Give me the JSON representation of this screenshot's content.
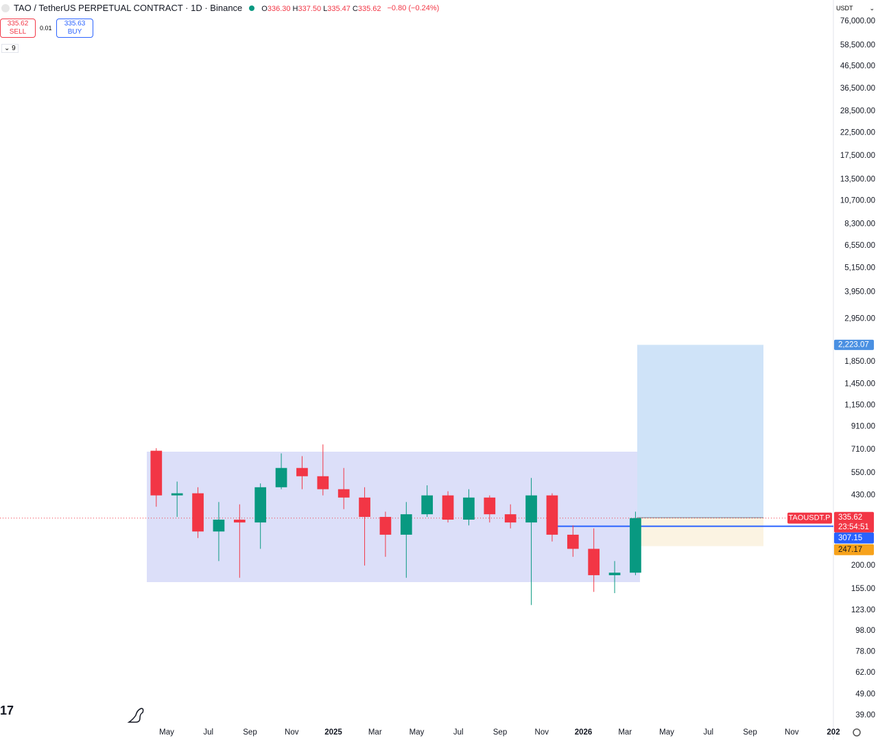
{
  "header": {
    "symbol": "TAO / TetherUS PERPETUAL CONTRACT · 1D · Binance",
    "ohlc": [
      {
        "key": "O",
        "value": "336.30"
      },
      {
        "key": "H",
        "value": "337.50"
      },
      {
        "key": "L",
        "value": "335.47"
      },
      {
        "key": "C",
        "value": "335.62"
      }
    ],
    "change": "−0.80 (−0.24%)"
  },
  "trade": {
    "sell": {
      "price": "335.62",
      "label": "SELL"
    },
    "spread": "0.01",
    "buy": {
      "price": "335.63",
      "label": "BUY"
    }
  },
  "indicators": "9",
  "currency": "USDT",
  "chart_data": {
    "type": "candlestick",
    "log_scale": true,
    "up_color": "#089981",
    "down_color": "#f23645",
    "x": [
      "2024-04",
      "2024-05",
      "2024-06",
      "2024-07",
      "2024-08",
      "2024-09",
      "2024-10",
      "2024-11",
      "2024-12",
      "2025-01",
      "2025-02",
      "2025-03",
      "2025-04",
      "2025-05",
      "2025-06",
      "2025-07",
      "2025-08",
      "2025-09",
      "2025-10",
      "2025-11",
      "2025-12",
      "2026-01",
      "2026-02",
      "2026-03"
    ],
    "open": [
      700,
      430,
      440,
      290,
      330,
      320,
      470,
      580,
      530,
      460,
      420,
      340,
      280,
      350,
      430,
      330,
      420,
      350,
      320,
      430,
      280,
      240,
      180,
      185
    ],
    "high": [
      720,
      500,
      470,
      400,
      390,
      490,
      680,
      660,
      750,
      580,
      470,
      360,
      400,
      480,
      450,
      460,
      430,
      390,
      520,
      440,
      310,
      300,
      210,
      360
    ],
    "low": [
      380,
      340,
      270,
      210,
      175,
      240,
      460,
      460,
      430,
      370,
      200,
      220,
      175,
      340,
      320,
      310,
      320,
      300,
      130,
      260,
      220,
      150,
      148,
      180
    ],
    "close": [
      430,
      440,
      290,
      330,
      320,
      470,
      580,
      530,
      460,
      420,
      340,
      280,
      350,
      430,
      330,
      420,
      350,
      320,
      430,
      280,
      240,
      180,
      185,
      335.62
    ],
    "xlim": [
      "2023-09",
      "2027-01"
    ],
    "xticks": [
      {
        "value": "2024-05",
        "label": "May"
      },
      {
        "value": "2024-07",
        "label": "Jul"
      },
      {
        "value": "2024-09",
        "label": "Sep"
      },
      {
        "value": "2024-11",
        "label": "Nov"
      },
      {
        "value": "2025-01",
        "label": "2025"
      },
      {
        "value": "2025-03",
        "label": "Mar"
      },
      {
        "value": "2025-05",
        "label": "May"
      },
      {
        "value": "2025-07",
        "label": "Jul"
      },
      {
        "value": "2025-09",
        "label": "Sep"
      },
      {
        "value": "2025-11",
        "label": "Nov"
      },
      {
        "value": "2026-01",
        "label": "2026"
      },
      {
        "value": "2026-03",
        "label": "Mar"
      },
      {
        "value": "2026-05",
        "label": "May"
      },
      {
        "value": "2026-07",
        "label": "Jul"
      },
      {
        "value": "2026-09",
        "label": "Sep"
      },
      {
        "value": "2026-11",
        "label": "Nov"
      },
      {
        "value": "2027-01",
        "label": "202"
      }
    ],
    "ylim": [
      35.4,
      95800
    ],
    "yticks": [
      {
        "value": 76000,
        "label": "76,000.00"
      },
      {
        "value": 58500,
        "label": "58,500.00"
      },
      {
        "value": 46500,
        "label": "46,500.00"
      },
      {
        "value": 36500,
        "label": "36,500.00"
      },
      {
        "value": 28500,
        "label": "28,500.00"
      },
      {
        "value": 22500,
        "label": "22,500.00"
      },
      {
        "value": 17500,
        "label": "17,500.00"
      },
      {
        "value": 13500,
        "label": "13,500.00"
      },
      {
        "value": 10700,
        "label": "10,700.00"
      },
      {
        "value": 8300,
        "label": "8,300.00"
      },
      {
        "value": 6550,
        "label": "6,550.00"
      },
      {
        "value": 5150,
        "label": "5,150.00"
      },
      {
        "value": 3950,
        "label": "3,950.00"
      },
      {
        "value": 2950,
        "label": "2,950.00"
      },
      {
        "value": 1850,
        "label": "1,850.00"
      },
      {
        "value": 1450,
        "label": "1,450.00"
      },
      {
        "value": 1150,
        "label": "1,150.00"
      },
      {
        "value": 910,
        "label": "910.00"
      },
      {
        "value": 710,
        "label": "710.00"
      },
      {
        "value": 550,
        "label": "550.00"
      },
      {
        "value": 430,
        "label": "430.00"
      },
      {
        "value": 200,
        "label": "200.00"
      },
      {
        "value": 155,
        "label": "155.00"
      },
      {
        "value": 123,
        "label": "123.00"
      },
      {
        "value": 98,
        "label": "98.00"
      },
      {
        "value": 78,
        "label": "78.00"
      },
      {
        "value": 62,
        "label": "62.00"
      },
      {
        "value": 49,
        "label": "49.00"
      },
      {
        "value": 39,
        "label": "39.00"
      }
    ],
    "markers": {
      "target": {
        "value": 2223.07,
        "label": "2,223.07"
      },
      "entry": 337.34,
      "last": 335.62,
      "countdown": "23:54:51",
      "symbol_tag": "TAOUSDT.P",
      "line": 307.15,
      "stop": 247.17
    }
  }
}
